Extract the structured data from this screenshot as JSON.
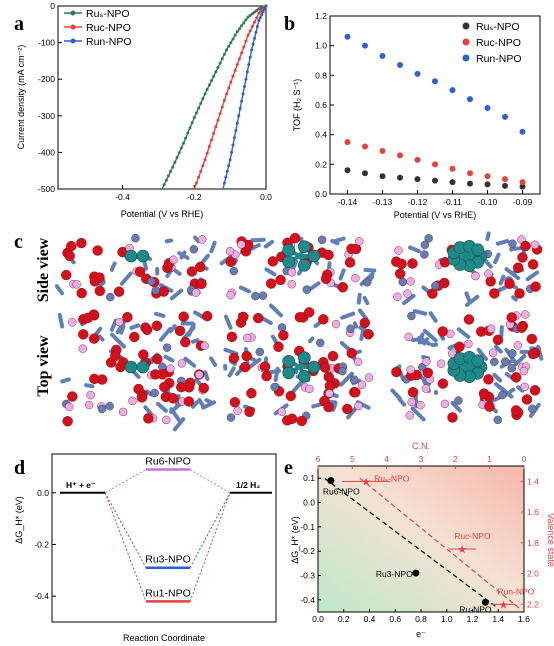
{
  "panel_labels": {
    "a": "a",
    "b": "b",
    "c": "c",
    "d": "d",
    "e": "e"
  },
  "colors": {
    "Ru_s": "#2e7d4f",
    "Ru_c": "#e8413c",
    "Ru_n": "#2f5fd6",
    "black": "#333333"
  },
  "chart_data": [
    {
      "panel": "a",
      "type": "line",
      "xlabel": "Potential (V vs RHE)",
      "ylabel": "Current density (mA cm⁻²)",
      "xlim": [
        -0.58,
        0.0
      ],
      "ylim": [
        -500,
        0
      ],
      "xticks": [
        -0.4,
        -0.2,
        0.0
      ],
      "xtick_labels": [
        "-0.4",
        "-0.2",
        "0.0"
      ],
      "yticks": [
        -500,
        -400,
        -300,
        -200,
        -100,
        0
      ],
      "ytick_labels": [
        "-500",
        "-400",
        "-300",
        "-200",
        "-100",
        "0"
      ],
      "legend_position": "top-left",
      "series": [
        {
          "name": "Ruₛ-NPO",
          "color": "#2e7d4f",
          "x": [
            0.0,
            -0.02,
            -0.05,
            -0.08,
            -0.11,
            -0.14,
            -0.17,
            -0.2,
            -0.23,
            -0.26,
            -0.29
          ],
          "y": [
            0,
            -8,
            -30,
            -70,
            -120,
            -180,
            -240,
            -305,
            -375,
            -440,
            -500
          ]
        },
        {
          "name": "Ruc-NPO",
          "color": "#e8413c",
          "x": [
            0.0,
            -0.02,
            -0.05,
            -0.08,
            -0.11,
            -0.14,
            -0.17,
            -0.2
          ],
          "y": [
            0,
            -20,
            -80,
            -160,
            -240,
            -330,
            -420,
            -500
          ]
        },
        {
          "name": "Run-NPO",
          "color": "#2f5fd6",
          "x": [
            0.0,
            -0.02,
            -0.04,
            -0.06,
            -0.08,
            -0.1,
            -0.12
          ],
          "y": [
            0,
            -40,
            -120,
            -220,
            -320,
            -420,
            -500
          ]
        }
      ]
    },
    {
      "panel": "b",
      "type": "scatter",
      "xlabel": "Potential (V vs RHE)",
      "ylabel": "TOF (H₂ S⁻¹)",
      "xlim": [
        -0.145,
        -0.085
      ],
      "ylim": [
        0.0,
        1.2
      ],
      "xticks": [
        -0.14,
        -0.13,
        -0.12,
        -0.11,
        -0.1,
        -0.09
      ],
      "xtick_labels": [
        "-0.14",
        "-0.13",
        "-0.12",
        "-0.11",
        "-0.10",
        "-0.09"
      ],
      "yticks": [
        0.0,
        0.2,
        0.4,
        0.6,
        0.8,
        1.0,
        1.2
      ],
      "ytick_labels": [
        "0.0",
        "0.2",
        "0.4",
        "0.6",
        "0.8",
        "1.0",
        "1.2"
      ],
      "legend_position": "top-right",
      "series": [
        {
          "name": "Ruₛ-NPO",
          "color": "#333333",
          "x": [
            -0.14,
            -0.135,
            -0.13,
            -0.125,
            -0.12,
            -0.115,
            -0.11,
            -0.105,
            -0.1,
            -0.095,
            -0.09
          ],
          "y": [
            0.16,
            0.14,
            0.12,
            0.11,
            0.1,
            0.09,
            0.08,
            0.07,
            0.065,
            0.055,
            0.05
          ]
        },
        {
          "name": "Ruc-NPO",
          "color": "#e8413c",
          "x": [
            -0.14,
            -0.135,
            -0.13,
            -0.125,
            -0.12,
            -0.115,
            -0.11,
            -0.105,
            -0.1,
            -0.095,
            -0.09
          ],
          "y": [
            0.35,
            0.32,
            0.29,
            0.26,
            0.23,
            0.2,
            0.17,
            0.14,
            0.12,
            0.1,
            0.08
          ]
        },
        {
          "name": "Run-NPO",
          "color": "#2f5fd6",
          "x": [
            -0.14,
            -0.135,
            -0.13,
            -0.125,
            -0.12,
            -0.115,
            -0.11,
            -0.105,
            -0.1,
            -0.095,
            -0.09
          ],
          "y": [
            1.06,
            1.0,
            0.93,
            0.87,
            0.81,
            0.76,
            0.7,
            0.64,
            0.58,
            0.52,
            0.42
          ]
        }
      ]
    },
    {
      "panel": "d",
      "type": "line",
      "xlabel": "Reaction Coordinate",
      "ylabel": "ΔG_H* (eV)",
      "ylim": [
        -0.5,
        0.15
      ],
      "yticks": [
        -0.4,
        -0.2,
        0.0
      ],
      "ytick_labels": [
        "-0.4",
        "-0.2",
        "0.0"
      ],
      "left_state": "H⁺ + e⁻",
      "right_state": "1/2 H₂",
      "states": [
        {
          "name": "Ru6-NPO",
          "value": 0.09,
          "color": "#d46bd6"
        },
        {
          "name": "Ru3-NPO",
          "value": -0.29,
          "color": "#2f5fd6"
        },
        {
          "name": "Ru1-NPO",
          "value": -0.42,
          "color": "#e8413c"
        }
      ]
    },
    {
      "panel": "e",
      "type": "scatter",
      "xlabel": "e⁻",
      "ylabel": "ΔG_H* (eV)",
      "xlim": [
        0.0,
        1.6
      ],
      "ylim": [
        -0.45,
        0.15
      ],
      "xticks": [
        0.0,
        0.2,
        0.4,
        0.6,
        0.8,
        1.0,
        1.2,
        1.4,
        1.6
      ],
      "xtick_labels": [
        "0.0",
        "0.2",
        "0.4",
        "0.6",
        "0.8",
        "1.0",
        "1.2",
        "1.4",
        "1.6"
      ],
      "yticks": [
        -0.4,
        -0.3,
        -0.2,
        -0.1,
        0.0,
        0.1
      ],
      "ytick_labels": [
        "-0.4",
        "-0.3",
        "-0.2",
        "-0.1",
        "0.0",
        "0.1"
      ],
      "top_axis_label": "C.N.",
      "top_ticks": [
        6,
        5,
        4,
        3,
        2,
        1,
        0
      ],
      "top_tick_labels": [
        "6",
        "5",
        "4",
        "3",
        "2",
        "1",
        "0"
      ],
      "right_axis_label": "Valence state",
      "right_ticks": [
        1.4,
        1.6,
        1.8,
        2.0,
        2.2
      ],
      "right_tick_labels": [
        "1.4",
        "1.6",
        "1.8",
        "2.0",
        "2.2"
      ],
      "points": [
        {
          "name": "Ru6-NPO",
          "x": 0.1,
          "y": 0.09
        },
        {
          "name": "Ru3-NPO",
          "x": 0.76,
          "y": -0.29
        },
        {
          "name": "Ru-NPO",
          "x": 1.3,
          "y": -0.41
        }
      ],
      "star_points": [
        {
          "name": "Ruₛ-NPO",
          "cn": 4.6,
          "valence": 1.4,
          "err_cn": 0.7
        },
        {
          "name": "Ruc-NPO",
          "cn": 1.8,
          "valence": 1.84,
          "err_cn": 0.4
        },
        {
          "name": "Run-NPO",
          "cn": 0.6,
          "valence": 2.2,
          "err_cn": 0.35
        }
      ]
    }
  ],
  "structure_panel": {
    "row_labels": [
      "Side view",
      "Top view"
    ]
  }
}
